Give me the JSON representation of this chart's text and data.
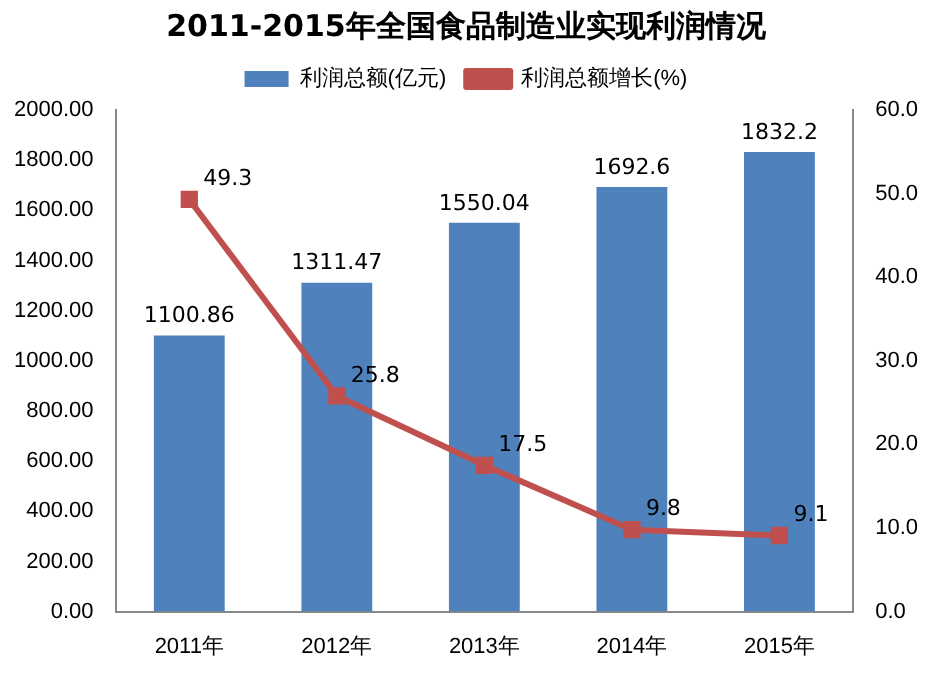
{
  "chart_data": {
    "type": "bar",
    "title": "2011-2015年全国食品制造业实现利润情况",
    "categories": [
      "2011年",
      "2012年",
      "2013年",
      "2014年",
      "2015年"
    ],
    "series": [
      {
        "name": "利润总额(亿元)",
        "color": "#4f81bd",
        "values": [
          1100.86,
          1311.47,
          1550.04,
          1692.6,
          1832.2
        ]
      },
      {
        "name": "利润总额增长(%)",
        "type": "line",
        "axis": "y2",
        "color": "#c0504d",
        "marker": "square",
        "values": [
          49.3,
          25.8,
          17.5,
          9.8,
          9.1
        ]
      }
    ],
    "ylim": [
      0,
      2000
    ],
    "yticks": [
      {
        "value": 0,
        "label": "0.00"
      },
      {
        "value": 200,
        "label": "200.00"
      },
      {
        "value": 400,
        "label": "400.00"
      },
      {
        "value": 600,
        "label": "600.00"
      },
      {
        "value": 800,
        "label": "800.00"
      },
      {
        "value": 1000,
        "label": "1000.00"
      },
      {
        "value": 1200,
        "label": "1200.00"
      },
      {
        "value": 1400,
        "label": "1400.00"
      },
      {
        "value": 1600,
        "label": "1600.00"
      },
      {
        "value": 1800,
        "label": "1800.00"
      },
      {
        "value": 2000,
        "label": "2000.00"
      }
    ],
    "y2lim": [
      0,
      60
    ],
    "y2ticks": [
      {
        "value": 0,
        "label": "0.0"
      },
      {
        "value": 10,
        "label": "10.0"
      },
      {
        "value": 20,
        "label": "20.0"
      },
      {
        "value": 30,
        "label": "30.0"
      },
      {
        "value": 40,
        "label": "40.0"
      },
      {
        "value": 50,
        "label": "50.0"
      },
      {
        "value": 60,
        "label": "60.0"
      }
    ],
    "grid": false,
    "legend": "top",
    "data_labels": true
  }
}
